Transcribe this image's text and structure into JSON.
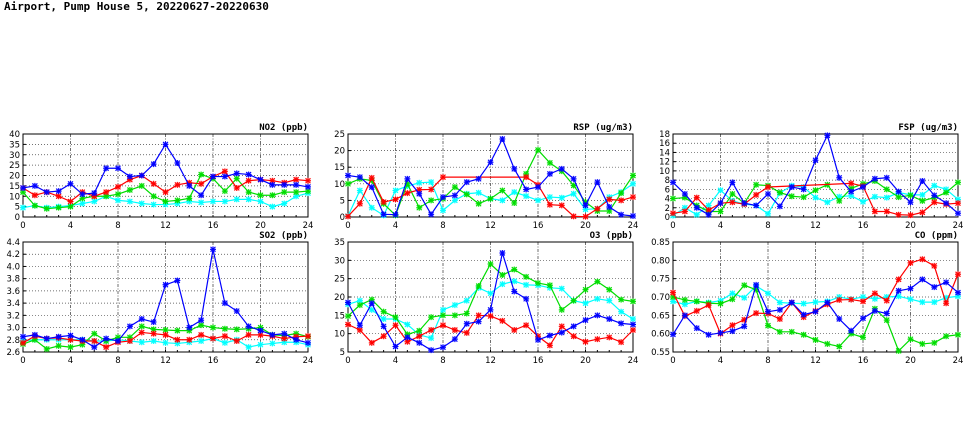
{
  "title": "Airport, Pump House 5, 20220627-20220630",
  "chart_data": [
    {
      "type": "line",
      "title": "NO2 (ppb)",
      "ylim": [
        0,
        40
      ],
      "ystep": 5,
      "ydec": 0,
      "xlim": [
        0,
        24
      ],
      "xticks": [
        0,
        4,
        8,
        12,
        16,
        20,
        24
      ],
      "series": [
        {
          "color": "#00ffff",
          "values": [
            4.5,
            5.5,
            4.5,
            5,
            5.5,
            6.5,
            7.5,
            10,
            8,
            7.5,
            6.5,
            6,
            6,
            6.5,
            7.5,
            7,
            7.5,
            7.5,
            8.5,
            8.5,
            7.5,
            5,
            6.5,
            10,
            11.5
          ]
        },
        {
          "color": "#00dd00",
          "values": [
            12,
            5.5,
            4,
            4.5,
            5,
            9,
            10,
            10,
            11,
            13,
            15,
            10,
            7.5,
            8,
            9,
            20.5,
            18.5,
            12.5,
            18.5,
            12,
            10.5,
            10.5,
            12,
            12,
            12.5
          ]
        },
        {
          "color": "#ff0000",
          "values": [
            14,
            10.5,
            12,
            10,
            7.5,
            12,
            10,
            12,
            14.5,
            18,
            20,
            16,
            12,
            15.5,
            16.5,
            16,
            19.5,
            22,
            14,
            17.5,
            18,
            17.5,
            16.5,
            18,
            17.5
          ]
        },
        {
          "color": "#0000ff",
          "values": [
            14,
            15,
            12,
            12.5,
            16,
            11,
            11.5,
            23.5,
            23.5,
            19.5,
            20,
            25.5,
            35,
            26,
            15,
            10.5,
            19.5,
            19.5,
            21,
            20.5,
            18,
            15.5,
            15.5,
            15.5,
            14.5
          ]
        }
      ]
    },
    {
      "type": "line",
      "title": "RSP (ug/m3)",
      "ylim": [
        0,
        25
      ],
      "ystep": 5,
      "ydec": 0,
      "xlim": [
        0,
        24
      ],
      "xticks": [
        0,
        4,
        8,
        12,
        16,
        20,
        24
      ],
      "series": [
        {
          "color": "#00ffff",
          "values": [
            0.3,
            8,
            2.8,
            0.5,
            8,
            9.3,
            10.3,
            10.5,
            2,
            5,
            7,
            7.3,
            5.5,
            5,
            7.5,
            6.3,
            5,
            6,
            5.8,
            7,
            2.3,
            2.5,
            6,
            7.5,
            10
          ]
        },
        {
          "color": "#00dd00",
          "values": [
            10,
            11.5,
            11,
            4,
            0.5,
            10,
            2.8,
            5,
            5.5,
            9,
            6.8,
            4,
            5.5,
            8,
            4.2,
            13,
            20.2,
            16.3,
            13.8,
            9.5,
            4.5,
            1.8,
            1.8,
            7.2,
            12.5
          ]
        },
        {
          "color": "#ff0000",
          "values": [
            0.2,
            4,
            11.8,
            4.5,
            5.3,
            7.2,
            8.2,
            8.3,
            12,
            null,
            null,
            null,
            null,
            null,
            null,
            12,
            9.7,
            3.7,
            3.5,
            0.2,
            0.1,
            2.5,
            5.3,
            5,
            6
          ]
        },
        {
          "color": "#0000ff",
          "values": [
            12.5,
            12,
            9,
            0.8,
            0.7,
            11.5,
            7,
            0.8,
            6,
            6.5,
            10.5,
            11.5,
            16.5,
            23.5,
            14.5,
            8.3,
            9,
            13,
            14.5,
            11.5,
            3.5,
            10.5,
            3,
            0.7,
            0.3
          ]
        }
      ]
    },
    {
      "type": "line",
      "title": "FSP (ug/m3)",
      "ylim": [
        0,
        18
      ],
      "ystep": 2,
      "ydec": 0,
      "xlim": [
        0,
        24
      ],
      "xticks": [
        0,
        4,
        8,
        12,
        16,
        20,
        24
      ],
      "series": [
        {
          "color": "#00ffff",
          "values": [
            0.3,
            2,
            0.5,
            2.5,
            5.8,
            3.5,
            2.8,
            2.5,
            0.7,
            5.2,
            6.8,
            6.5,
            4.2,
            3.2,
            4.4,
            4.6,
            3.3,
            4.4,
            4.2,
            5.3,
            4.8,
            4.8,
            6.8,
            6,
            3.8
          ]
        },
        {
          "color": "#00dd00",
          "values": [
            4,
            4.2,
            2.5,
            1.2,
            1.2,
            5,
            3,
            7,
            6.8,
            5.3,
            4.5,
            4.3,
            5.8,
            7,
            3.5,
            6.2,
            7.2,
            7.8,
            6,
            4.3,
            4.7,
            3.5,
            4.2,
            5.3,
            7.5
          ]
        },
        {
          "color": "#ff0000",
          "values": [
            0.8,
            1.2,
            4.2,
            1.5,
            3,
            3.2,
            2.8,
            4.8,
            6.5,
            null,
            null,
            null,
            null,
            null,
            null,
            7.3,
            6.7,
            1.2,
            1.2,
            0.5,
            0.4,
            1,
            3.2,
            2.8,
            3
          ]
        },
        {
          "color": "#0000ff",
          "values": [
            7.5,
            5,
            2,
            0.5,
            3,
            7.5,
            3,
            2.5,
            5,
            2.3,
            6.5,
            6,
            12.3,
            17.7,
            8.5,
            5.5,
            6.5,
            8.3,
            8.5,
            5.5,
            3.2,
            7.8,
            4.7,
            3,
            0.8
          ]
        }
      ]
    },
    {
      "type": "line",
      "title": "SO2 (ppb)",
      "ylim": [
        2.6,
        4.4
      ],
      "ystep": 0.2,
      "ydec": 1,
      "xlim": [
        0,
        24
      ],
      "xticks": [
        0,
        4,
        8,
        12,
        16,
        20,
        24
      ],
      "series": [
        {
          "color": "#00ffff",
          "values": [
            2.78,
            2.8,
            2.8,
            2.8,
            2.8,
            2.8,
            2.78,
            2.78,
            2.8,
            2.78,
            2.76,
            2.78,
            2.75,
            2.74,
            2.76,
            2.78,
            2.82,
            2.75,
            2.8,
            2.68,
            2.72,
            2.74,
            2.76,
            2.76,
            2.72
          ]
        },
        {
          "color": "#00dd00",
          "values": [
            2.73,
            2.8,
            2.65,
            2.7,
            2.68,
            2.72,
            2.9,
            2.78,
            2.84,
            2.84,
            3.02,
            2.97,
            2.96,
            2.95,
            2.95,
            3.04,
            3.0,
            2.98,
            2.97,
            2.98,
            3.0,
            2.88,
            2.87,
            2.9,
            2.85
          ]
        },
        {
          "color": "#ff0000",
          "values": [
            2.75,
            2.86,
            2.82,
            2.83,
            2.8,
            2.78,
            2.78,
            2.68,
            2.76,
            2.78,
            2.92,
            2.9,
            2.88,
            2.8,
            2.8,
            2.88,
            2.82,
            2.86,
            2.78,
            2.88,
            2.88,
            2.86,
            2.82,
            2.85,
            2.86
          ]
        },
        {
          "color": "#0000ff",
          "values": [
            2.85,
            2.88,
            2.82,
            2.85,
            2.87,
            2.8,
            2.68,
            2.82,
            2.78,
            3.02,
            3.14,
            3.09,
            3.7,
            3.77,
            3.0,
            3.12,
            4.28,
            3.4,
            3.27,
            3.02,
            2.95,
            2.88,
            2.9,
            2.8,
            2.75
          ]
        }
      ]
    },
    {
      "type": "line",
      "title": "O3 (ppb)",
      "ylim": [
        5,
        35
      ],
      "ystep": 5,
      "ydec": 0,
      "xlim": [
        0,
        24
      ],
      "xticks": [
        0,
        4,
        8,
        12,
        16,
        20,
        24
      ],
      "series": [
        {
          "color": "#00ffff",
          "values": [
            18,
            19,
            16.5,
            14,
            14,
            12.5,
            9.7,
            8.8,
            16.5,
            17.8,
            19,
            22.5,
            21,
            23.5,
            24.3,
            23.3,
            23.2,
            22.5,
            22.3,
            19,
            18.3,
            19.5,
            19,
            16,
            14
          ]
        },
        {
          "color": "#00dd00",
          "values": [
            14.8,
            17.8,
            19.3,
            16,
            14.5,
            9.8,
            10.8,
            14.5,
            15,
            15,
            15.5,
            23,
            29,
            26,
            27.5,
            25.5,
            23.8,
            23.2,
            16.5,
            19,
            22,
            24.2,
            22,
            19.3,
            18.8
          ]
        },
        {
          "color": "#ff0000",
          "values": [
            12.5,
            11,
            7.5,
            9.3,
            12.3,
            7.8,
            9.3,
            11,
            12.3,
            11,
            10.2,
            15,
            14.8,
            13.5,
            11,
            12.3,
            9.3,
            6.8,
            12,
            9.3,
            7.8,
            8.5,
            9,
            7.7,
            11
          ]
        },
        {
          "color": "#0000ff",
          "values": [
            18.5,
            12.3,
            18.3,
            12,
            6.5,
            9,
            7.5,
            5.5,
            6.3,
            8.5,
            12.7,
            13.3,
            16.5,
            32,
            21.5,
            19.5,
            8.3,
            9.5,
            10.3,
            12,
            13.7,
            15,
            14,
            12.8,
            12.5
          ]
        }
      ]
    },
    {
      "type": "line",
      "title": "CO (ppm)",
      "ylim": [
        0.55,
        0.85
      ],
      "ystep": 0.05,
      "ydec": 2,
      "xlim": [
        0,
        24
      ],
      "xticks": [
        0,
        4,
        8,
        12,
        16,
        20,
        24
      ],
      "series": [
        {
          "color": "#00ffff",
          "values": [
            0.688,
            0.68,
            0.688,
            0.685,
            0.69,
            0.71,
            0.698,
            0.73,
            0.71,
            0.685,
            0.683,
            0.682,
            0.686,
            0.688,
            0.7,
            0.694,
            0.7,
            0.695,
            0.7,
            0.702,
            0.694,
            0.686,
            0.686,
            0.698,
            0.702
          ]
        },
        {
          "color": "#00dd00",
          "values": [
            0.7,
            0.692,
            0.688,
            0.683,
            0.682,
            0.694,
            0.732,
            0.72,
            0.622,
            0.605,
            0.605,
            0.597,
            0.583,
            0.572,
            0.565,
            0.6,
            0.59,
            0.668,
            0.637,
            0.553,
            0.585,
            0.572,
            0.575,
            0.593,
            0.597
          ]
        },
        {
          "color": "#ff0000",
          "values": [
            0.712,
            0.648,
            0.662,
            0.678,
            0.6,
            0.623,
            0.638,
            0.656,
            0.655,
            0.64,
            0.685,
            0.645,
            0.662,
            0.68,
            0.692,
            0.693,
            0.688,
            0.71,
            0.69,
            0.748,
            0.793,
            0.803,
            0.785,
            0.683,
            0.762
          ]
        },
        {
          "color": "#0000ff",
          "values": [
            0.598,
            0.65,
            0.615,
            0.597,
            0.602,
            0.607,
            0.62,
            0.733,
            0.66,
            0.665,
            0.685,
            0.652,
            0.66,
            0.685,
            0.64,
            0.608,
            0.642,
            0.662,
            0.655,
            0.717,
            0.723,
            0.748,
            0.727,
            0.74,
            0.712
          ]
        }
      ]
    }
  ]
}
